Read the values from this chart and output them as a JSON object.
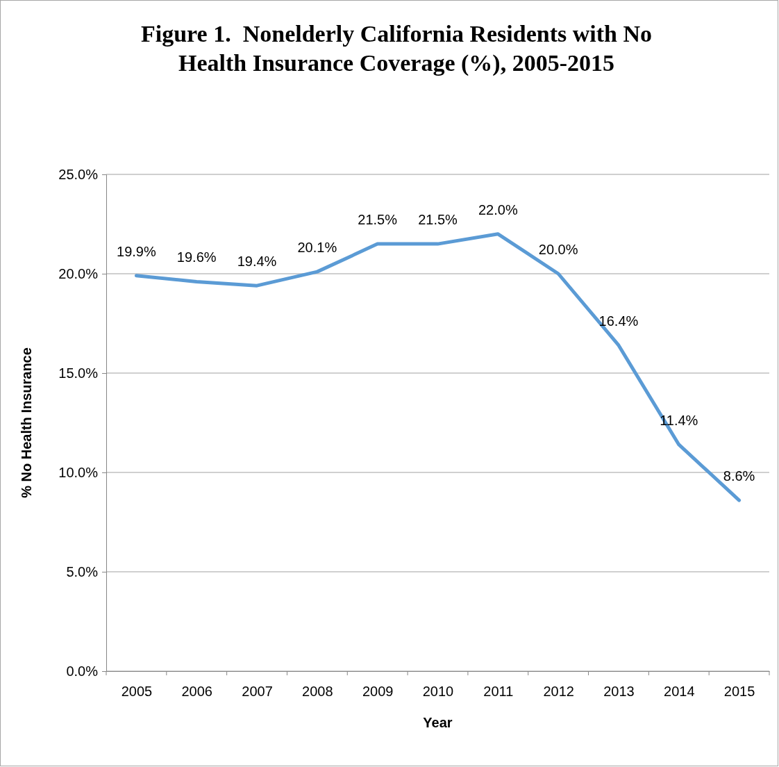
{
  "chart_data": {
    "type": "line",
    "title": "Figure 1.  Nonelderly California Residents with No Health Insurance Coverage (%), 2005-2015",
    "xlabel": "Year",
    "ylabel": "% No Health Insurance",
    "categories": [
      "2005",
      "2006",
      "2007",
      "2008",
      "2009",
      "2010",
      "2011",
      "2012",
      "2013",
      "2014",
      "2015"
    ],
    "series": [
      {
        "color": "#5b9bd5",
        "values": [
          19.9,
          19.6,
          19.4,
          20.1,
          21.5,
          21.5,
          22.0,
          20.0,
          16.4,
          11.4,
          8.6
        ],
        "value_labels": [
          "19.9%",
          "19.6%",
          "19.4%",
          "20.1%",
          "21.5%",
          "21.5%",
          "22.0%",
          "20.0%",
          "16.4%",
          "11.4%",
          "8.6%"
        ]
      }
    ],
    "ylim": [
      0,
      25
    ],
    "yticks": [
      {
        "value": 0,
        "label": "0.0%"
      },
      {
        "value": 5,
        "label": "5.0%"
      },
      {
        "value": 10,
        "label": "10.0%"
      },
      {
        "value": 15,
        "label": "15.0%"
      },
      {
        "value": 20,
        "label": "20.0%"
      },
      {
        "value": 25,
        "label": "25.0%"
      }
    ],
    "grid": "y",
    "marker": "none",
    "line_style": "solid"
  }
}
